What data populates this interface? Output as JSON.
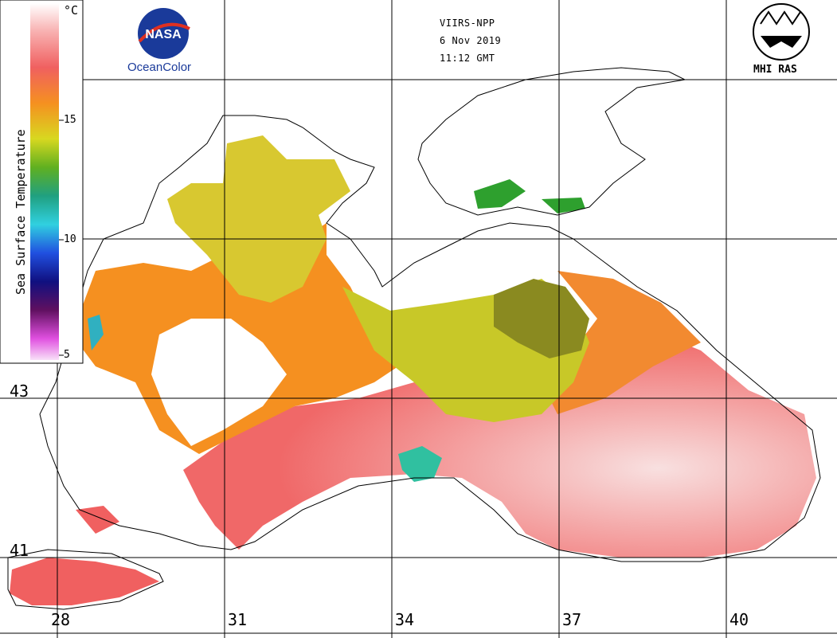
{
  "header": {
    "satellite": "VIIRS-NPP",
    "date": "6 Nov 2019",
    "time": "11:12 GMT"
  },
  "logos": {
    "nasa": {
      "text": "NASA",
      "subtitle": "OceanColor"
    },
    "mhi": {
      "text": "MHI RAS"
    }
  },
  "colorbar": {
    "title": "Sea Surface Temperature",
    "unit": "°C",
    "ticks": [
      "15",
      "10",
      "5"
    ]
  },
  "axes": {
    "longitude_labels": [
      "28",
      "31",
      "34",
      "37",
      "40"
    ],
    "latitude_labels": [
      "43",
      "41"
    ]
  },
  "colors": {
    "warm": "#f06060",
    "orange": "#f59020",
    "yellow": "#d8d820",
    "olive": "#8a8a20",
    "green": "#2ea02e",
    "cyan": "#30d0e0",
    "pale": "#f8d8d8"
  }
}
